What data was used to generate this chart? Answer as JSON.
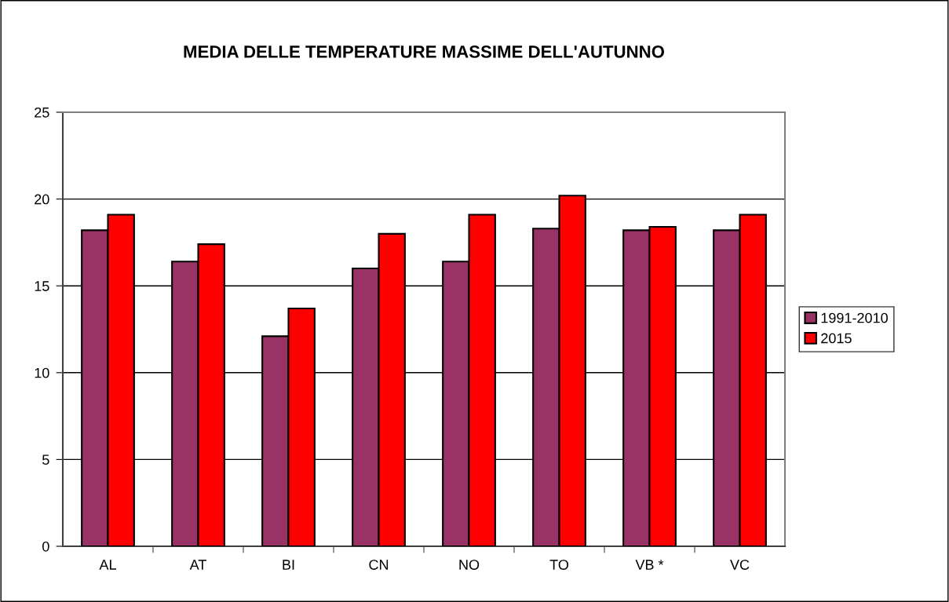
{
  "chart_data": {
    "type": "bar",
    "title": "MEDIA DELLE TEMPERATURE MASSIME DELL'AUTUNNO",
    "categories": [
      "AL",
      "AT",
      "BI",
      "CN",
      "NO",
      "TO",
      "VB *",
      "VC"
    ],
    "series": [
      {
        "name": "1991-2010",
        "color": "#993366",
        "values": [
          18.2,
          16.4,
          12.1,
          16.0,
          16.4,
          18.3,
          18.2,
          18.2
        ]
      },
      {
        "name": "2015",
        "color": "#ff0000",
        "values": [
          19.1,
          17.4,
          13.7,
          18.0,
          19.1,
          20.2,
          18.4,
          19.1
        ]
      }
    ],
    "ylim": [
      0,
      25
    ],
    "yticks": [
      0,
      5,
      10,
      15,
      20,
      25
    ],
    "grid": "y",
    "legend": "right"
  }
}
